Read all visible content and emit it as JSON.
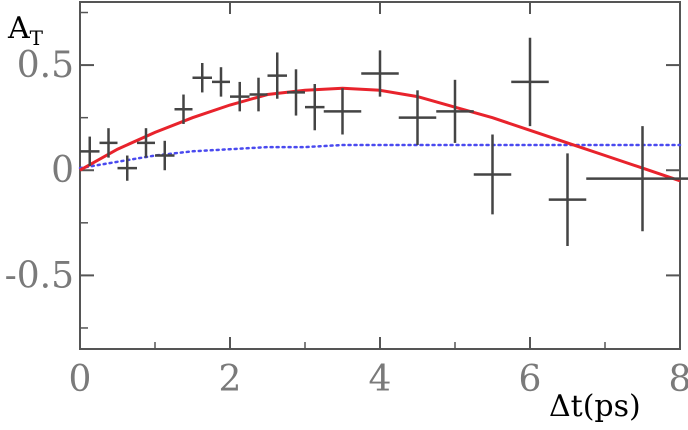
{
  "chart_data": {
    "type": "scatter",
    "title": "",
    "ylabel": "A",
    "ylabel_subscript": "T",
    "xlabel": "Δt(ps)",
    "xlim": [
      0,
      8
    ],
    "ylim": [
      -0.85,
      0.8
    ],
    "xticks": [
      0,
      2,
      4,
      6,
      8
    ],
    "yticks": [
      0.5,
      0,
      -0.5
    ],
    "ytick_labels": [
      "0.5",
      "0",
      "-0.5"
    ],
    "grid": false,
    "colors": {
      "frame": "#555555",
      "data": "#444444",
      "fit": "#e8232c",
      "reference": "#4a4aef",
      "tick_text": "#7a7a7a"
    },
    "series": [
      {
        "type": "errorbar",
        "points": [
          {
            "x": 0.13,
            "xerr": 0.13,
            "y": 0.09,
            "yerr": 0.07
          },
          {
            "x": 0.38,
            "xerr": 0.12,
            "y": 0.13,
            "yerr": 0.07
          },
          {
            "x": 0.63,
            "xerr": 0.13,
            "y": 0.01,
            "yerr": 0.06
          },
          {
            "x": 0.88,
            "xerr": 0.12,
            "y": 0.13,
            "yerr": 0.07
          },
          {
            "x": 1.13,
            "xerr": 0.13,
            "y": 0.07,
            "yerr": 0.07
          },
          {
            "x": 1.38,
            "xerr": 0.12,
            "y": 0.29,
            "yerr": 0.07
          },
          {
            "x": 1.63,
            "xerr": 0.13,
            "y": 0.44,
            "yerr": 0.07
          },
          {
            "x": 1.88,
            "xerr": 0.12,
            "y": 0.42,
            "yerr": 0.07
          },
          {
            "x": 2.13,
            "xerr": 0.13,
            "y": 0.35,
            "yerr": 0.07
          },
          {
            "x": 2.38,
            "xerr": 0.12,
            "y": 0.36,
            "yerr": 0.08
          },
          {
            "x": 2.63,
            "xerr": 0.13,
            "y": 0.45,
            "yerr": 0.11
          },
          {
            "x": 2.88,
            "xerr": 0.12,
            "y": 0.37,
            "yerr": 0.11
          },
          {
            "x": 3.13,
            "xerr": 0.13,
            "y": 0.3,
            "yerr": 0.11
          },
          {
            "x": 3.5,
            "xerr": 0.25,
            "y": 0.28,
            "yerr": 0.11
          },
          {
            "x": 4.0,
            "xerr": 0.25,
            "y": 0.46,
            "yerr": 0.11
          },
          {
            "x": 4.5,
            "xerr": 0.25,
            "y": 0.25,
            "yerr": 0.13
          },
          {
            "x": 5.0,
            "xerr": 0.25,
            "y": 0.28,
            "yerr": 0.15
          },
          {
            "x": 5.5,
            "xerr": 0.25,
            "y": -0.02,
            "yerr": 0.19
          },
          {
            "x": 6.0,
            "xerr": 0.25,
            "y": 0.42,
            "yerr": 0.21
          },
          {
            "x": 6.5,
            "xerr": 0.25,
            "y": -0.14,
            "yerr": 0.22
          },
          {
            "x": 7.5,
            "xerr": 0.75,
            "y": -0.04,
            "yerr": 0.25
          }
        ]
      },
      {
        "type": "line",
        "style": "solid",
        "points": [
          [
            0,
            0
          ],
          [
            0.5,
            0.1
          ],
          [
            1,
            0.18
          ],
          [
            1.5,
            0.25
          ],
          [
            2,
            0.31
          ],
          [
            2.5,
            0.36
          ],
          [
            3,
            0.38
          ],
          [
            3.5,
            0.39
          ],
          [
            4,
            0.38
          ],
          [
            4.5,
            0.35
          ],
          [
            5,
            0.3
          ],
          [
            5.5,
            0.25
          ],
          [
            6,
            0.19
          ],
          [
            6.5,
            0.13
          ],
          [
            7,
            0.07
          ],
          [
            7.5,
            0.01
          ],
          [
            8,
            -0.05
          ]
        ]
      },
      {
        "type": "line",
        "style": "dotted",
        "points": [
          [
            0,
            0.01
          ],
          [
            0.5,
            0.04
          ],
          [
            1,
            0.07
          ],
          [
            1.5,
            0.09
          ],
          [
            2,
            0.1
          ],
          [
            2.5,
            0.11
          ],
          [
            3,
            0.11
          ],
          [
            3.5,
            0.12
          ],
          [
            4,
            0.12
          ],
          [
            5,
            0.12
          ],
          [
            6,
            0.12
          ],
          [
            7,
            0.12
          ],
          [
            8,
            0.12
          ]
        ]
      }
    ]
  }
}
